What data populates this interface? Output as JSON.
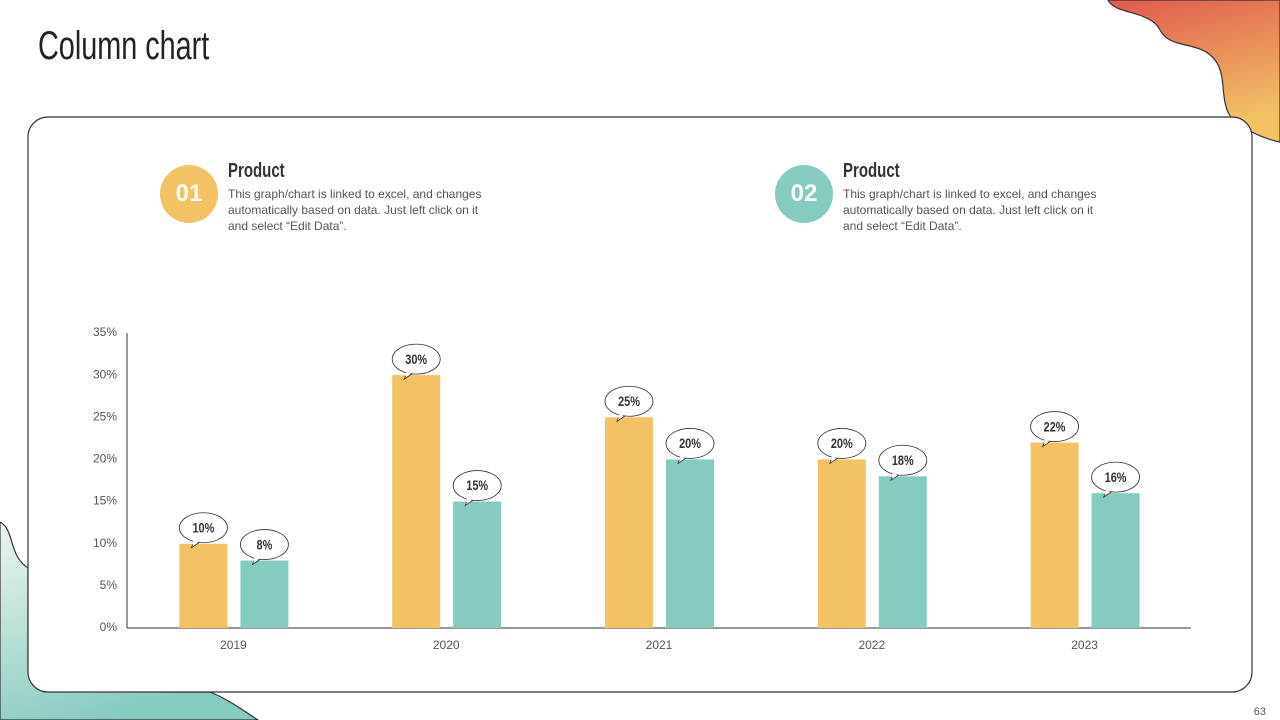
{
  "chart_data": {
    "type": "bar",
    "title": "Column chart",
    "categories": [
      "2019",
      "2020",
      "2021",
      "2022",
      "2023"
    ],
    "series": [
      {
        "name": "Product",
        "color": "#f2c265",
        "values": [
          10,
          30,
          25,
          20,
          22
        ],
        "value_labels": [
          "10%",
          "30%",
          "25%",
          "20%",
          "22%"
        ]
      },
      {
        "name": "Product",
        "color": "#86cbc0",
        "values": [
          8,
          15,
          20,
          18,
          16
        ],
        "value_labels": [
          "8%",
          "15%",
          "20%",
          "18%",
          "16%"
        ]
      }
    ],
    "ylim": [
      0,
      35
    ],
    "yticks": [
      {
        "value": 0,
        "label": "0%"
      },
      {
        "value": 5,
        "label": "5%"
      },
      {
        "value": 10,
        "label": "10%"
      },
      {
        "value": 15,
        "label": "15%"
      },
      {
        "value": 20,
        "label": "20%"
      },
      {
        "value": 25,
        "label": "25%"
      },
      {
        "value": 30,
        "label": "30%"
      },
      {
        "value": 35,
        "label": "35%"
      }
    ],
    "grid": false,
    "legend_items": [
      {
        "badge": "01",
        "description": "This graph/chart is linked to excel, and changes automatically based on data. Just left click on it and select “Edit Data”."
      },
      {
        "badge": "02",
        "description": "This graph/chart is linked to excel, and changes automatically based on data. Just left click on it and select “Edit Data”."
      }
    ]
  },
  "slide": {
    "page_number": "63"
  }
}
